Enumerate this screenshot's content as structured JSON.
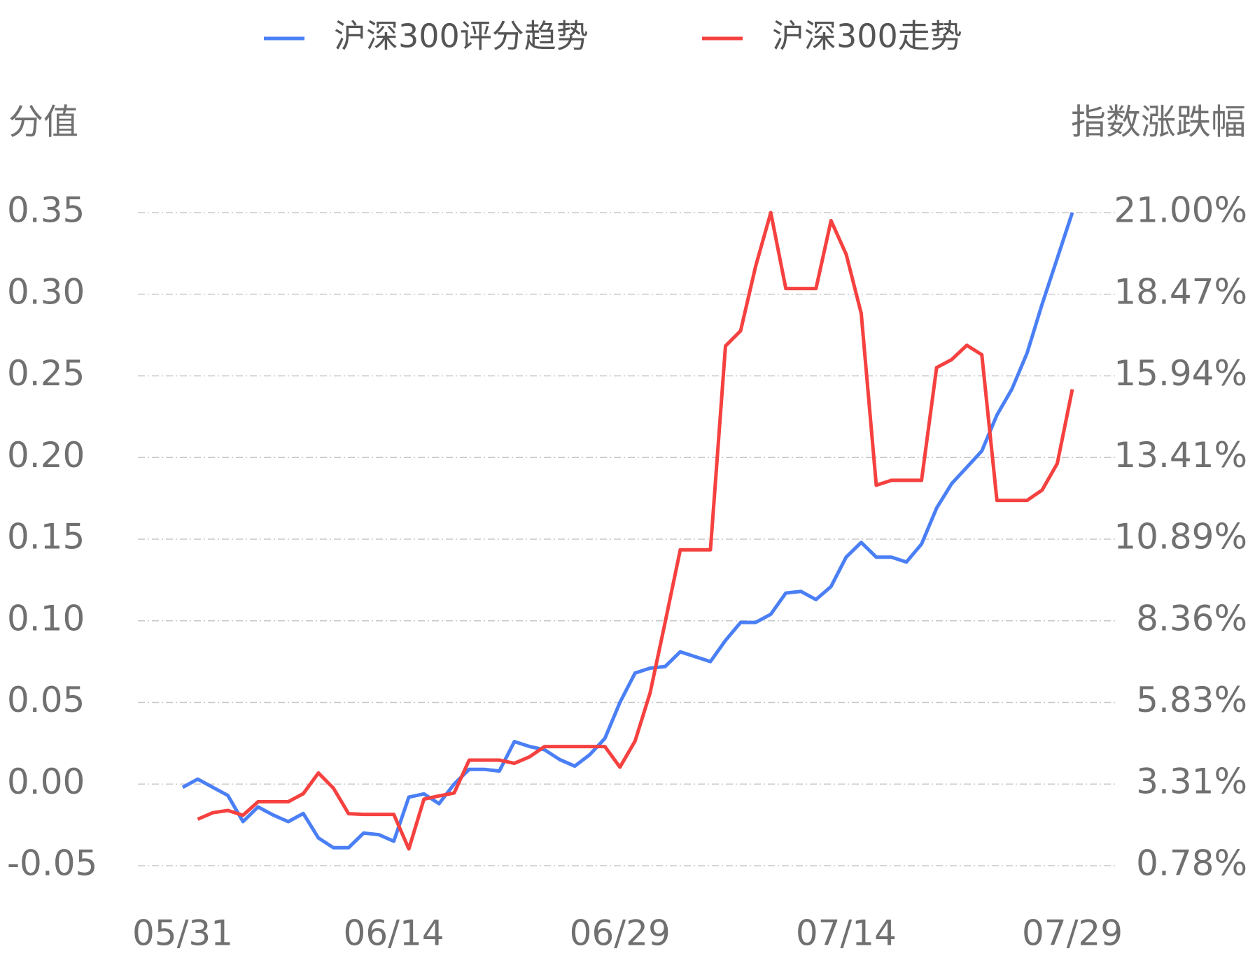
{
  "chart_data": {
    "type": "line",
    "y_label": "分值",
    "y2_label": "指数涨跌幅",
    "categories": [
      "05/31",
      null,
      null,
      null,
      null,
      null,
      null,
      null,
      null,
      null,
      null,
      null,
      null,
      null,
      "06/14",
      null,
      null,
      null,
      null,
      null,
      null,
      null,
      null,
      null,
      null,
      null,
      null,
      null,
      null,
      "06/29",
      null,
      null,
      null,
      null,
      null,
      null,
      null,
      null,
      null,
      null,
      null,
      null,
      null,
      null,
      "07/14",
      null,
      null,
      null,
      null,
      null,
      null,
      null,
      null,
      null,
      null,
      null,
      null,
      null,
      null,
      "07/29"
    ],
    "series": [
      {
        "name": "沪深300评分趋势",
        "color": "#4a7ff5",
        "axis": "y",
        "values": [
          -0.002,
          0.003,
          -0.002,
          -0.007,
          -0.023,
          -0.014,
          -0.019,
          -0.023,
          -0.018,
          -0.033,
          -0.039,
          -0.039,
          -0.03,
          -0.031,
          -0.035,
          -0.008,
          -0.006,
          -0.012,
          0.0,
          0.009,
          0.009,
          0.008,
          0.026,
          0.023,
          0.021,
          0.015,
          0.011,
          0.018,
          0.028,
          0.05,
          0.068,
          0.071,
          0.072,
          0.081,
          0.078,
          0.075,
          0.088,
          0.099,
          0.099,
          0.104,
          0.117,
          0.118,
          0.113,
          0.121,
          0.139,
          0.148,
          0.139,
          0.139,
          0.136,
          0.147,
          0.169,
          0.184,
          0.194,
          0.204,
          0.226,
          0.242,
          0.264,
          0.294,
          0.322,
          0.35
        ]
      },
      {
        "name": "沪深300走势",
        "color": "#f5413f",
        "axis": "y2",
        "values": [
          null,
          2.22,
          2.42,
          2.49,
          2.34,
          2.76,
          2.76,
          2.76,
          3.01,
          3.65,
          3.18,
          2.39,
          2.37,
          2.37,
          2.37,
          1.3,
          2.84,
          2.94,
          3.03,
          4.05,
          4.05,
          4.05,
          3.95,
          4.15,
          4.47,
          4.47,
          4.47,
          4.47,
          4.47,
          3.83,
          4.64,
          6.13,
          8.33,
          10.56,
          10.56,
          10.56,
          16.87,
          17.34,
          19.34,
          21.0,
          18.65,
          18.65,
          18.65,
          20.75,
          19.71,
          17.88,
          12.56,
          12.71,
          12.71,
          12.71,
          16.2,
          16.45,
          16.89,
          16.6,
          12.09,
          12.09,
          12.09,
          12.41,
          13.23,
          15.53
        ]
      }
    ],
    "ylim": [
      -0.05,
      0.35
    ],
    "yticks": [
      -0.05,
      {
        "value": 0,
        "label": "0.00"
      },
      0.05,
      {
        "value": 0.1,
        "label": "0.10"
      },
      0.15,
      {
        "value": 0.2,
        "label": "0.20"
      },
      0.25,
      {
        "value": 0.3,
        "label": "0.30"
      },
      0.35
    ],
    "y2lim": [
      0.78,
      21.0
    ],
    "y2ticks": [
      {
        "value": 0.78,
        "label": "0.78%"
      },
      {
        "value": 3.31,
        "label": "3.31%"
      },
      {
        "value": 5.83,
        "label": "5.83%"
      },
      {
        "value": 8.36,
        "label": "8.36%"
      },
      {
        "value": 10.89,
        "label": "10.89%"
      },
      {
        "value": 13.41,
        "label": "13.41%"
      },
      {
        "value": 15.94,
        "label": "15.94%"
      },
      {
        "value": 18.47,
        "label": "18.47%"
      },
      {
        "value": 21.0,
        "label": "21.00%"
      }
    ],
    "grid": true,
    "legend": "top"
  }
}
